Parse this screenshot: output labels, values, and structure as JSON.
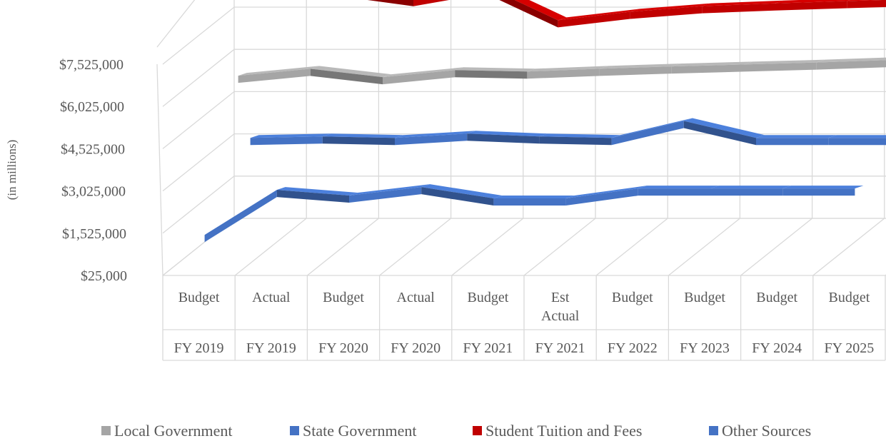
{
  "chart_data": {
    "type": "line",
    "style": "3d",
    "ylabel": "(in millions)",
    "ylim": [
      25000,
      7525000
    ],
    "y_ticks": [
      "$25,000",
      "$1,525,000",
      "$3,025,000",
      "$4,525,000",
      "$6,025,000",
      "$7,525,000"
    ],
    "categories": [
      {
        "sub": [
          "Budget"
        ],
        "fy": "FY 2019"
      },
      {
        "sub": [
          "Actual"
        ],
        "fy": "FY 2019"
      },
      {
        "sub": [
          "Budget"
        ],
        "fy": "FY 2020"
      },
      {
        "sub": [
          "Actual"
        ],
        "fy": "FY 2020"
      },
      {
        "sub": [
          "Budget"
        ],
        "fy": "FY 2021"
      },
      {
        "sub": [
          "Est",
          "Actual"
        ],
        "fy": "FY 2021"
      },
      {
        "sub": [
          "Budget"
        ],
        "fy": "FY 2022"
      },
      {
        "sub": [
          "Budget"
        ],
        "fy": "FY 2023"
      },
      {
        "sub": [
          "Budget"
        ],
        "fy": "FY 2024"
      },
      {
        "sub": [
          "Budget"
        ],
        "fy": "FY 2025"
      }
    ],
    "series": [
      {
        "name": "Local Government",
        "color": "#a5a5a5",
        "values": [
          6000000,
          6250000,
          5950000,
          6200000,
          6150000,
          6250000,
          6330000,
          6400000,
          6470000,
          6560000
        ]
      },
      {
        "name": "State Government",
        "color": "#4472c4",
        "values": [
          1300000,
          2900000,
          2700000,
          3000000,
          2600000,
          2600000,
          2950000,
          2950000,
          2950000,
          2950000
        ]
      },
      {
        "name": "Student Tuition and Fees",
        "color": "#c00000",
        "values": [
          8100000,
          8200000,
          7850000,
          8300000,
          7100000,
          7400000,
          7600000,
          7700000,
          7780000,
          7860000
        ]
      },
      {
        "name": "Other Sources",
        "color": "#4472c4",
        "values": [
          3450000,
          3500000,
          3450000,
          3600000,
          3500000,
          3450000,
          4050000,
          3450000,
          3450000,
          3450000
        ]
      }
    ],
    "legend_position": "bottom",
    "grid": true
  }
}
